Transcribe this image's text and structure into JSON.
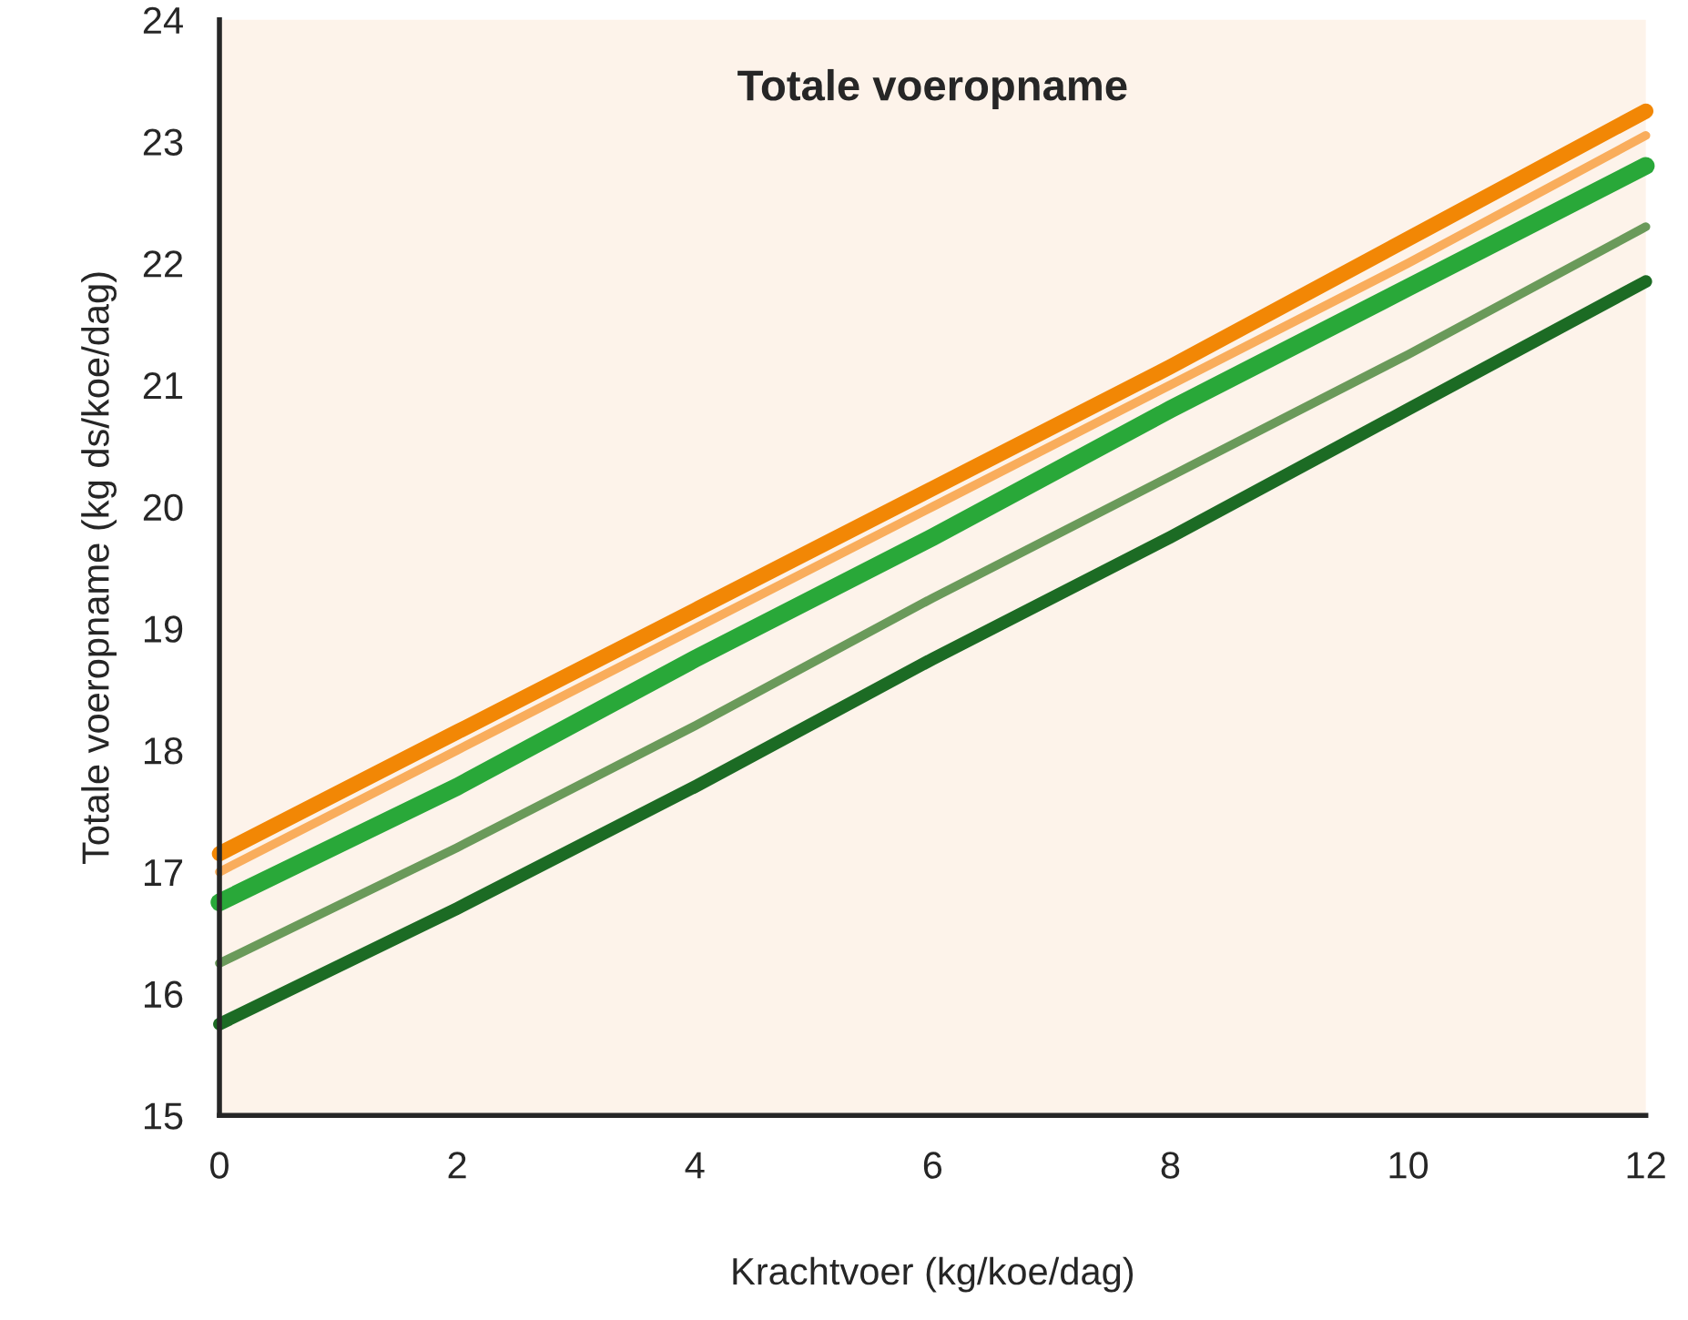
{
  "chart_data": {
    "type": "line",
    "title": "Totale voeropname",
    "xlabel": "Krachtvoer (kg/koe/dag)",
    "ylabel": "Totale voeropname (kg ds/koe/dag)",
    "x": [
      0,
      2,
      4,
      6,
      8,
      10,
      12
    ],
    "series": [
      {
        "color": "#f28705",
        "values": [
          17.15,
          18.15,
          19.15,
          20.15,
          21.15,
          22.2,
          23.25
        ]
      },
      {
        "color": "#f9ad5c",
        "values": [
          17.0,
          18.0,
          19.0,
          20.0,
          21.0,
          22.0,
          23.05
        ]
      },
      {
        "color": "#29a839",
        "values": [
          16.75,
          17.7,
          18.75,
          19.75,
          20.8,
          21.8,
          22.8
        ]
      },
      {
        "color": "#6a9a5a",
        "values": [
          16.25,
          17.2,
          18.2,
          19.25,
          20.25,
          21.25,
          22.3
        ]
      },
      {
        "color": "#1c6b24",
        "values": [
          15.75,
          16.7,
          17.7,
          18.75,
          19.75,
          20.8,
          21.85
        ]
      }
    ],
    "xlim": [
      0,
      12
    ],
    "xticks": [
      0,
      2,
      4,
      6,
      8,
      10,
      12
    ],
    "ylim": [
      15,
      24
    ],
    "yticks": [
      15,
      16,
      17,
      18,
      19,
      20,
      21,
      22,
      23,
      24
    ],
    "grid": false,
    "legend": false
  }
}
